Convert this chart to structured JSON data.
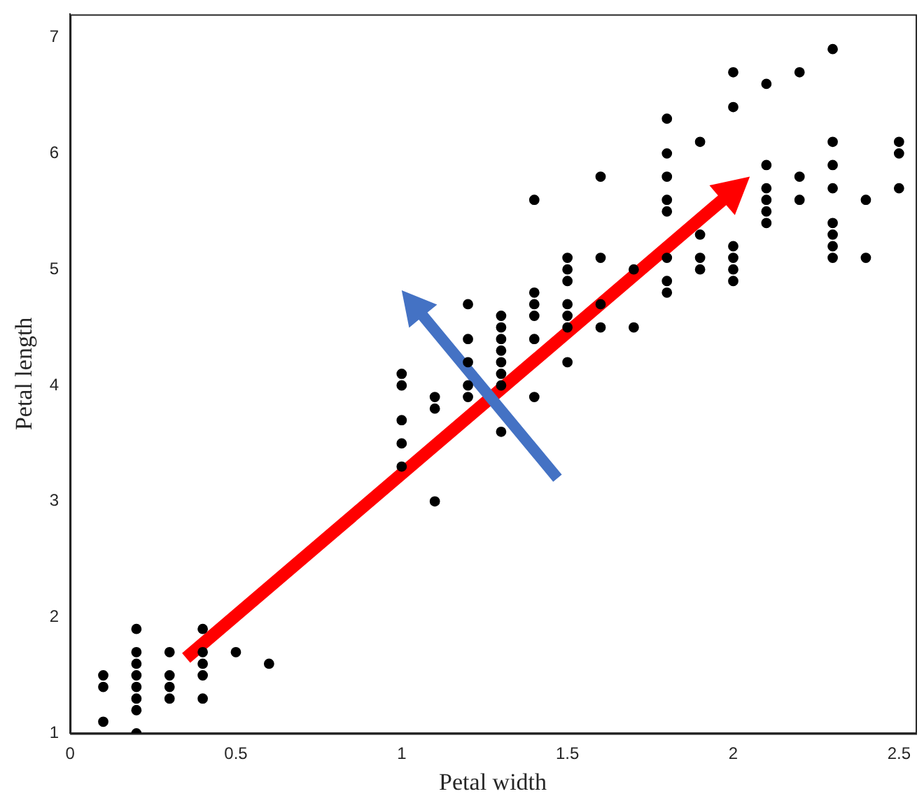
{
  "chart_data": {
    "type": "scatter",
    "xlabel": "Petal width",
    "ylabel": "Petal length",
    "xlim": [
      0,
      2.55
    ],
    "ylim": [
      1,
      7.2
    ],
    "xticks": [
      0,
      0.5,
      1,
      1.5,
      2,
      2.5
    ],
    "yticks": [
      1,
      2,
      3,
      4,
      5,
      6,
      7
    ],
    "marker": "circle",
    "legend": false,
    "series": [
      {
        "color": "#000000",
        "x": [
          0.1,
          0.1,
          0.1,
          0.2,
          0.2,
          0.2,
          0.2,
          0.2,
          0.2,
          0.2,
          0.2,
          0.3,
          0.3,
          0.3,
          0.3,
          0.4,
          0.4,
          0.4,
          0.4,
          0.4,
          0.5,
          0.6,
          1.0,
          1.0,
          1.0,
          1.0,
          1.0,
          1.1,
          1.1,
          1.1,
          1.2,
          1.2,
          1.2,
          1.2,
          1.2,
          1.3,
          1.3,
          1.3,
          1.3,
          1.3,
          1.3,
          1.3,
          1.3,
          1.4,
          1.4,
          1.4,
          1.4,
          1.4,
          1.4,
          1.5,
          1.5,
          1.5,
          1.5,
          1.5,
          1.5,
          1.5,
          1.6,
          1.6,
          1.6,
          1.6,
          1.7,
          1.7,
          1.8,
          1.8,
          1.8,
          1.8,
          1.8,
          1.8,
          1.8,
          1.8,
          1.9,
          1.9,
          1.9,
          1.9,
          2.0,
          2.0,
          2.0,
          2.0,
          2.0,
          2.0,
          2.1,
          2.1,
          2.1,
          2.1,
          2.1,
          2.1,
          2.2,
          2.2,
          2.2,
          2.3,
          2.3,
          2.3,
          2.3,
          2.3,
          2.3,
          2.3,
          2.3,
          2.4,
          2.4,
          2.5,
          2.5,
          2.5
        ],
        "values": [
          1.5,
          1.4,
          1.1,
          1.4,
          1.3,
          1.5,
          1.6,
          1.2,
          1.0,
          1.7,
          1.9,
          1.4,
          1.7,
          1.5,
          1.3,
          1.7,
          1.5,
          1.3,
          1.6,
          1.9,
          1.7,
          1.6,
          3.3,
          3.5,
          4.0,
          4.1,
          3.7,
          3.9,
          3.8,
          3.0,
          4.7,
          3.9,
          4.4,
          4.0,
          4.2,
          4.0,
          4.5,
          4.6,
          3.6,
          4.3,
          4.4,
          4.1,
          4.2,
          4.7,
          3.9,
          4.4,
          4.8,
          4.6,
          5.6,
          4.5,
          4.9,
          4.6,
          4.2,
          4.7,
          5.0,
          5.1,
          4.7,
          5.1,
          4.5,
          5.8,
          5.0,
          4.5,
          4.8,
          5.6,
          6.3,
          5.8,
          5.5,
          4.9,
          6.0,
          5.1,
          5.1,
          5.3,
          5.0,
          6.1,
          5.1,
          5.0,
          4.9,
          6.7,
          6.4,
          5.2,
          5.9,
          6.6,
          5.5,
          5.7,
          5.6,
          5.4,
          5.8,
          6.7,
          5.6,
          5.3,
          6.9,
          5.7,
          6.1,
          5.1,
          5.9,
          5.2,
          5.4,
          5.1,
          5.6,
          6.0,
          6.1,
          5.7
        ]
      }
    ]
  }
}
